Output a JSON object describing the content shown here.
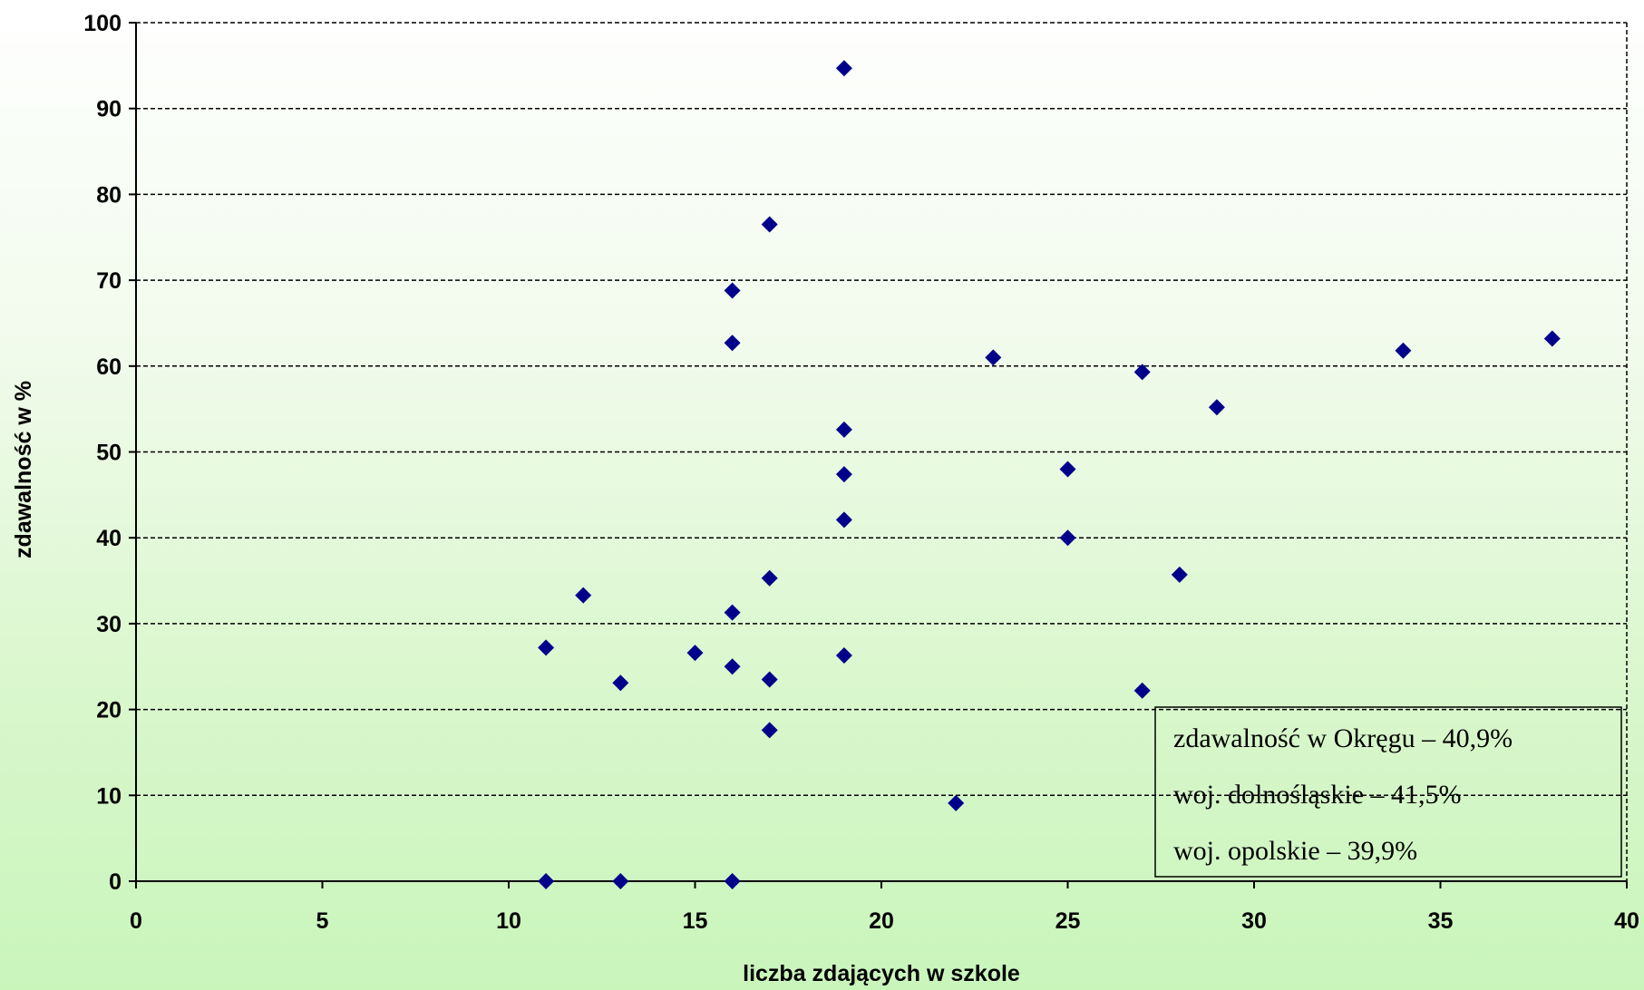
{
  "chart_data": {
    "type": "scatter",
    "xlabel": "liczba zdających w szkole",
    "ylabel": "zdawalność w %",
    "xlim": [
      0,
      40
    ],
    "ylim": [
      0,
      100
    ],
    "xticks": [
      0,
      5,
      10,
      15,
      20,
      25,
      30,
      35,
      40
    ],
    "yticks": [
      0,
      10,
      20,
      30,
      40,
      50,
      60,
      70,
      80,
      90,
      100
    ],
    "grid": "horizontal-dashed",
    "marker_color": "#00008b",
    "points": [
      {
        "x": 11,
        "y": 27.2
      },
      {
        "x": 11,
        "y": 0
      },
      {
        "x": 12,
        "y": 33.3
      },
      {
        "x": 13,
        "y": 23.1
      },
      {
        "x": 13,
        "y": 0
      },
      {
        "x": 15,
        "y": 26.6
      },
      {
        "x": 16,
        "y": 68.8
      },
      {
        "x": 16,
        "y": 62.7
      },
      {
        "x": 16,
        "y": 31.3
      },
      {
        "x": 16,
        "y": 25.0
      },
      {
        "x": 16,
        "y": 0
      },
      {
        "x": 17,
        "y": 76.5
      },
      {
        "x": 17,
        "y": 35.3
      },
      {
        "x": 17,
        "y": 23.5
      },
      {
        "x": 17,
        "y": 17.6
      },
      {
        "x": 19,
        "y": 94.7
      },
      {
        "x": 19,
        "y": 52.6
      },
      {
        "x": 19,
        "y": 47.4
      },
      {
        "x": 19,
        "y": 42.1
      },
      {
        "x": 19,
        "y": 26.3
      },
      {
        "x": 22,
        "y": 9.1
      },
      {
        "x": 23,
        "y": 61.0
      },
      {
        "x": 25,
        "y": 48.0
      },
      {
        "x": 25,
        "y": 40.0
      },
      {
        "x": 27,
        "y": 59.3
      },
      {
        "x": 27,
        "y": 22.2
      },
      {
        "x": 28,
        "y": 35.7
      },
      {
        "x": 29,
        "y": 55.2
      },
      {
        "x": 34,
        "y": 61.8
      },
      {
        "x": 38,
        "y": 63.2
      }
    ],
    "annotations": [
      "zdawalność w Okręgu – 40,9%",
      "woj. dolnośląskie – 41,5%",
      "woj. opolskie – 39,9%"
    ]
  }
}
